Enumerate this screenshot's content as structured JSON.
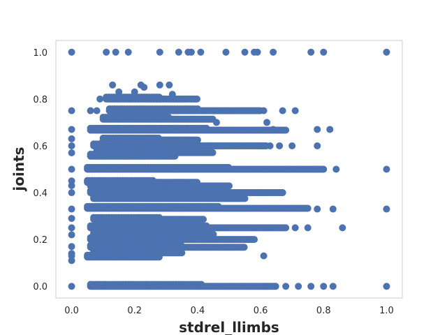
{
  "chart_data": {
    "type": "scatter",
    "title": "",
    "xlabel": "stdrel_llimbs",
    "ylabel": "joints",
    "xlim": [
      -0.05,
      1.05
    ],
    "ylim": [
      -0.05,
      1.05
    ],
    "xticks": [
      "0.0",
      "0.2",
      "0.4",
      "0.6",
      "0.8",
      "1.0"
    ],
    "yticks": [
      "0.0",
      "0.2",
      "0.4",
      "0.6",
      "0.8",
      "1.0"
    ],
    "grid": false,
    "legend": "none",
    "marker_color": "#4c72b0",
    "sparse_points": [
      [
        0.0,
        1.0
      ],
      [
        0.11,
        1.0
      ],
      [
        0.14,
        1.0
      ],
      [
        0.18,
        1.0
      ],
      [
        0.28,
        1.0
      ],
      [
        0.34,
        1.0
      ],
      [
        0.37,
        1.0
      ],
      [
        0.38,
        1.0
      ],
      [
        0.41,
        1.0
      ],
      [
        0.49,
        1.0
      ],
      [
        0.55,
        1.0
      ],
      [
        0.58,
        1.0
      ],
      [
        0.59,
        1.0
      ],
      [
        0.64,
        1.0
      ],
      [
        0.76,
        1.0
      ],
      [
        0.8,
        1.0
      ],
      [
        1.0,
        1.0
      ],
      [
        0.0,
        0.75
      ],
      [
        0.06,
        0.75
      ],
      [
        0.09,
        0.8
      ],
      [
        0.13,
        0.86
      ],
      [
        0.15,
        0.83
      ],
      [
        0.2,
        0.83
      ],
      [
        0.22,
        0.86
      ],
      [
        0.23,
        0.85
      ],
      [
        0.28,
        0.86
      ],
      [
        0.31,
        0.86
      ],
      [
        0.32,
        0.82
      ],
      [
        0.27,
        0.8
      ],
      [
        0.12,
        0.75
      ],
      [
        0.08,
        0.75
      ],
      [
        0.56,
        0.75
      ],
      [
        0.61,
        0.75
      ],
      [
        0.67,
        0.75
      ],
      [
        0.71,
        0.75
      ],
      [
        0.0,
        0.67
      ],
      [
        0.46,
        0.7
      ],
      [
        0.62,
        0.7
      ],
      [
        0.64,
        0.67
      ],
      [
        0.78,
        0.67
      ],
      [
        0.82,
        0.67
      ],
      [
        0.0,
        0.6
      ],
      [
        0.0,
        0.57
      ],
      [
        0.0,
        0.63
      ],
      [
        0.6,
        0.6
      ],
      [
        0.63,
        0.6
      ],
      [
        0.66,
        0.6
      ],
      [
        0.7,
        0.6
      ],
      [
        0.78,
        0.6
      ],
      [
        0.0,
        0.5
      ],
      [
        0.0,
        0.45
      ],
      [
        0.0,
        0.4
      ],
      [
        0.0,
        0.43
      ],
      [
        0.68,
        0.5
      ],
      [
        0.73,
        0.5
      ],
      [
        0.77,
        0.5
      ],
      [
        0.8,
        0.5
      ],
      [
        0.84,
        0.5
      ],
      [
        1.0,
        0.5
      ],
      [
        0.6,
        0.4
      ],
      [
        0.67,
        0.4
      ],
      [
        0.0,
        0.33
      ],
      [
        0.0,
        0.29
      ],
      [
        0.78,
        0.33
      ],
      [
        0.83,
        0.33
      ],
      [
        1.0,
        0.33
      ],
      [
        0.0,
        0.25
      ],
      [
        0.0,
        0.22
      ],
      [
        0.0,
        0.17
      ],
      [
        0.0,
        0.14
      ],
      [
        0.0,
        0.13
      ],
      [
        0.0,
        0.11
      ],
      [
        0.71,
        0.25
      ],
      [
        0.75,
        0.25
      ],
      [
        0.86,
        0.25
      ],
      [
        0.61,
        0.13
      ],
      [
        0.0,
        0.0
      ],
      [
        0.68,
        0.0
      ],
      [
        0.72,
        0.0
      ],
      [
        0.76,
        0.0
      ],
      [
        0.8,
        0.0
      ],
      [
        0.83,
        0.0
      ],
      [
        1.0,
        0.0
      ]
    ],
    "clusters": [
      {
        "y": 0.0,
        "x_range": [
          0.06,
          0.65
        ]
      },
      {
        "y": 0.125,
        "x_range": [
          0.05,
          0.28
        ]
      },
      {
        "y": 0.143,
        "x_range": [
          0.07,
          0.35
        ]
      },
      {
        "y": 0.167,
        "x_range": [
          0.06,
          0.55
        ]
      },
      {
        "y": 0.2,
        "x_range": [
          0.06,
          0.58
        ]
      },
      {
        "y": 0.222,
        "x_range": [
          0.07,
          0.45
        ]
      },
      {
        "y": 0.25,
        "x_range": [
          0.06,
          0.68
        ]
      },
      {
        "y": 0.286,
        "x_range": [
          0.07,
          0.42
        ]
      },
      {
        "y": 0.333,
        "x_range": [
          0.05,
          0.75
        ]
      },
      {
        "y": 0.375,
        "x_range": [
          0.07,
          0.55
        ]
      },
      {
        "y": 0.4,
        "x_range": [
          0.06,
          0.67
        ]
      },
      {
        "y": 0.429,
        "x_range": [
          0.06,
          0.5
        ]
      },
      {
        "y": 0.444,
        "x_range": [
          0.05,
          0.4
        ]
      },
      {
        "y": 0.5,
        "x_range": [
          0.05,
          0.8
        ]
      },
      {
        "y": 0.556,
        "x_range": [
          0.06,
          0.33
        ]
      },
      {
        "y": 0.571,
        "x_range": [
          0.08,
          0.45
        ]
      },
      {
        "y": 0.6,
        "x_range": [
          0.07,
          0.62
        ]
      },
      {
        "y": 0.625,
        "x_range": [
          0.1,
          0.4
        ]
      },
      {
        "y": 0.667,
        "x_range": [
          0.06,
          0.68
        ]
      },
      {
        "y": 0.714,
        "x_range": [
          0.1,
          0.45
        ]
      },
      {
        "y": 0.75,
        "x_range": [
          0.12,
          0.6
        ]
      },
      {
        "y": 0.8,
        "x_range": [
          0.11,
          0.4
        ]
      }
    ]
  }
}
